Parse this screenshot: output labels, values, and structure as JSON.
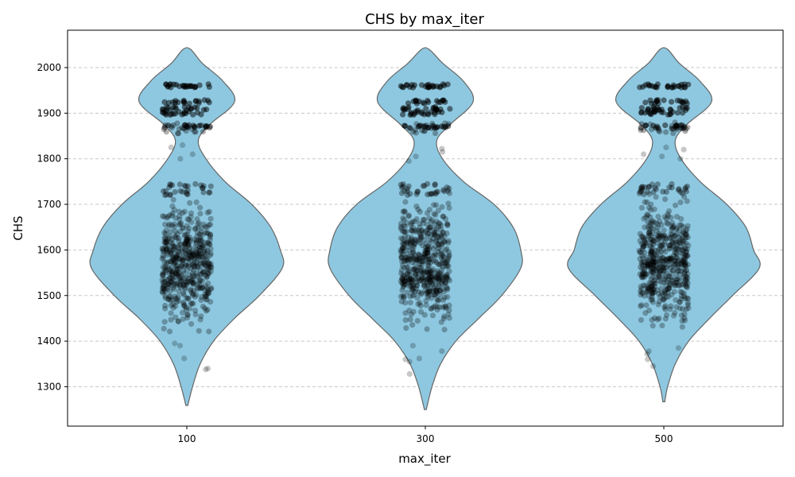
{
  "chart_data": {
    "type": "violin",
    "title": "CHS by max_iter",
    "xlabel": "max_iter",
    "ylabel": "CHS",
    "categories": [
      "100",
      "300",
      "500"
    ],
    "ylim": [
      1210,
      2070
    ],
    "yticks": [
      1300,
      1400,
      1500,
      1600,
      1700,
      1800,
      1900,
      2000
    ],
    "grid": "y-dashed",
    "violin_color": "#8ec8e0",
    "violin_edge_color": "#666666",
    "point_color": "#000000",
    "violins": [
      {
        "category": "100",
        "min": 1259,
        "max": 2040,
        "density_profile": [
          {
            "y": 1259,
            "w": 0.005
          },
          {
            "y": 1300,
            "w": 0.03
          },
          {
            "y": 1350,
            "w": 0.07
          },
          {
            "y": 1400,
            "w": 0.14
          },
          {
            "y": 1450,
            "w": 0.25
          },
          {
            "y": 1500,
            "w": 0.38
          },
          {
            "y": 1560,
            "w": 0.5
          },
          {
            "y": 1600,
            "w": 0.49
          },
          {
            "y": 1650,
            "w": 0.44
          },
          {
            "y": 1700,
            "w": 0.34
          },
          {
            "y": 1750,
            "w": 0.2
          },
          {
            "y": 1800,
            "w": 0.1
          },
          {
            "y": 1840,
            "w": 0.06
          },
          {
            "y": 1875,
            "w": 0.12
          },
          {
            "y": 1925,
            "w": 0.25
          },
          {
            "y": 1970,
            "w": 0.19
          },
          {
            "y": 2010,
            "w": 0.08
          },
          {
            "y": 2040,
            "w": 0.02
          }
        ],
        "points_summary": {
          "bands": [
            1960,
            1925,
            1910,
            1900,
            1870
          ],
          "main_range": [
            1400,
            1745
          ],
          "outliers": [
            1338,
            1340,
            1362,
            1390,
            1395,
            1800,
            1810,
            1825,
            1830
          ]
        }
      },
      {
        "category": "300",
        "min": 1250,
        "max": 2040,
        "density_profile": [
          {
            "y": 1250,
            "w": 0.005
          },
          {
            "y": 1300,
            "w": 0.035
          },
          {
            "y": 1350,
            "w": 0.08
          },
          {
            "y": 1400,
            "w": 0.16
          },
          {
            "y": 1450,
            "w": 0.28
          },
          {
            "y": 1500,
            "w": 0.4
          },
          {
            "y": 1560,
            "w": 0.5
          },
          {
            "y": 1600,
            "w": 0.5
          },
          {
            "y": 1650,
            "w": 0.46
          },
          {
            "y": 1700,
            "w": 0.36
          },
          {
            "y": 1750,
            "w": 0.2
          },
          {
            "y": 1800,
            "w": 0.09
          },
          {
            "y": 1840,
            "w": 0.06
          },
          {
            "y": 1875,
            "w": 0.13
          },
          {
            "y": 1925,
            "w": 0.25
          },
          {
            "y": 1970,
            "w": 0.2
          },
          {
            "y": 2010,
            "w": 0.09
          },
          {
            "y": 2040,
            "w": 0.02
          }
        ],
        "points_summary": {
          "bands": [
            1960,
            1925,
            1910,
            1900,
            1870
          ],
          "main_range": [
            1400,
            1745
          ],
          "outliers": [
            1328,
            1355,
            1360,
            1362,
            1378,
            1390,
            1795,
            1805,
            1815,
            1822
          ]
        }
      },
      {
        "category": "500",
        "min": 1267,
        "max": 2040,
        "density_profile": [
          {
            "y": 1267,
            "w": 0.005
          },
          {
            "y": 1300,
            "w": 0.02
          },
          {
            "y": 1350,
            "w": 0.06
          },
          {
            "y": 1400,
            "w": 0.13
          },
          {
            "y": 1450,
            "w": 0.24
          },
          {
            "y": 1500,
            "w": 0.36
          },
          {
            "y": 1560,
            "w": 0.5
          },
          {
            "y": 1600,
            "w": 0.47
          },
          {
            "y": 1650,
            "w": 0.43
          },
          {
            "y": 1700,
            "w": 0.33
          },
          {
            "y": 1750,
            "w": 0.19
          },
          {
            "y": 1800,
            "w": 0.09
          },
          {
            "y": 1840,
            "w": 0.06
          },
          {
            "y": 1875,
            "w": 0.12
          },
          {
            "y": 1925,
            "w": 0.25
          },
          {
            "y": 1970,
            "w": 0.19
          },
          {
            "y": 2010,
            "w": 0.08
          },
          {
            "y": 2040,
            "w": 0.02
          }
        ],
        "points_summary": {
          "bands": [
            1960,
            1925,
            1910,
            1900,
            1870
          ],
          "main_range": [
            1400,
            1745
          ],
          "outliers": [
            1345,
            1360,
            1372,
            1378,
            1385,
            1800,
            1805,
            1810,
            1820,
            1825
          ]
        }
      }
    ]
  }
}
